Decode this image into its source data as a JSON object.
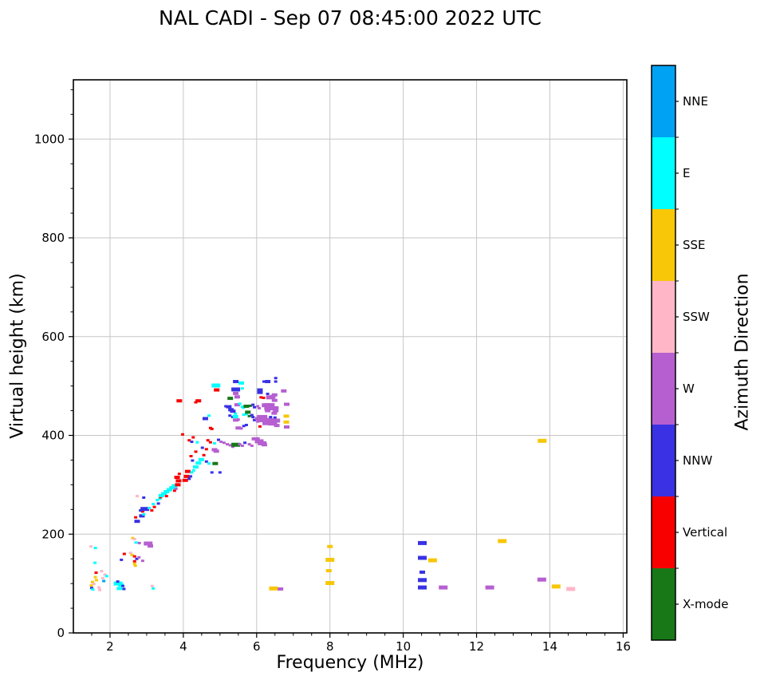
{
  "title": "NAL CADI - Sep 07 08:45:00 2022 UTC",
  "chart_data": {
    "type": "scatter",
    "title": "NAL CADI - Sep 07 08:45:00 2022 UTC",
    "xlabel": "Frequency (MHz)",
    "ylabel": "Virtual height (km)",
    "xlim": [
      1,
      16.1
    ],
    "ylim": [
      0,
      1120
    ],
    "grid": true,
    "x_ticks": {
      "major": [
        2,
        4,
        6,
        8,
        10,
        12,
        14,
        16
      ],
      "minor_step": 0.5
    },
    "y_ticks": {
      "major": [
        0,
        200,
        400,
        600,
        800,
        1000
      ],
      "minor_step": 50
    },
    "colorbar": {
      "label": "Azimuth Direction",
      "position": "right",
      "categories": [
        {
          "label": "NNE",
          "color": "#00A2F3"
        },
        {
          "label": "E",
          "color": "#00FFFF"
        },
        {
          "label": "SSE",
          "color": "#F7C708"
        },
        {
          "label": "SSW",
          "color": "#FFB6C7"
        },
        {
          "label": "W",
          "color": "#B65FD0"
        },
        {
          "label": "NNW",
          "color": "#3931E3"
        },
        {
          "label": "Vertical",
          "color": "#F80000"
        },
        {
          "label": "X-mode",
          "color": "#187818"
        }
      ]
    },
    "point_format": "[frequency_MHz, virtual_height_km, azimuth_category, mark_size]",
    "points": [
      [
        1.48,
        175,
        "SSW",
        "s"
      ],
      [
        1.6,
        172,
        "E",
        "s"
      ],
      [
        1.59,
        142,
        "E",
        "s"
      ],
      [
        1.77,
        125,
        "SSW",
        "s"
      ],
      [
        1.62,
        122,
        "Vertical",
        "s"
      ],
      [
        1.86,
        118,
        "SSW",
        "s"
      ],
      [
        1.91,
        115,
        "E",
        "s"
      ],
      [
        1.6,
        113,
        "SSE",
        "s"
      ],
      [
        1.8,
        111,
        "SSW",
        "s"
      ],
      [
        1.63,
        107,
        "SSE",
        "s"
      ],
      [
        1.83,
        105,
        "NNE",
        "s"
      ],
      [
        1.52,
        103,
        "SSE",
        "s"
      ],
      [
        1.56,
        99,
        "SSW",
        "s"
      ],
      [
        1.49,
        96,
        "SSE",
        "s"
      ],
      [
        1.5,
        91,
        "NNW",
        "s"
      ],
      [
        1.53,
        88,
        "E",
        "s"
      ],
      [
        1.7,
        92,
        "SSW",
        "s"
      ],
      [
        1.72,
        87,
        "SSW",
        "s"
      ],
      [
        2.22,
        100,
        "E",
        "l"
      ],
      [
        2.3,
        97,
        "E",
        "m"
      ],
      [
        2.35,
        95,
        "NNW",
        "s"
      ],
      [
        2.26,
        90,
        "E",
        "m"
      ],
      [
        2.38,
        89,
        "NNW",
        "s"
      ],
      [
        2.21,
        104,
        "NNW",
        "s"
      ],
      [
        3.15,
        95,
        "SSW",
        "s"
      ],
      [
        3.18,
        90,
        "E",
        "s"
      ],
      [
        2.62,
        192,
        "SSE",
        "s"
      ],
      [
        2.67,
        190,
        "SSW",
        "s"
      ],
      [
        2.71,
        183,
        "E",
        "s"
      ],
      [
        2.8,
        182,
        "W",
        "s"
      ],
      [
        3.04,
        181,
        "W",
        "l"
      ],
      [
        3.1,
        176,
        "W",
        "m"
      ],
      [
        2.67,
        145,
        "Vertical",
        "s"
      ],
      [
        2.69,
        136,
        "SSE",
        "s"
      ],
      [
        2.89,
        146,
        "W",
        "s"
      ],
      [
        2.39,
        160,
        "Vertical",
        "s"
      ],
      [
        2.56,
        162,
        "SSW",
        "s"
      ],
      [
        2.6,
        158,
        "SSE",
        "s"
      ],
      [
        2.67,
        155,
        "Vertical",
        "s"
      ],
      [
        2.73,
        150,
        "NNW",
        "s"
      ],
      [
        2.79,
        153,
        "W",
        "s"
      ],
      [
        2.31,
        148,
        "NNW",
        "s"
      ],
      [
        2.67,
        140,
        "SSE",
        "s"
      ],
      [
        2.74,
        226,
        "NNW",
        "m"
      ],
      [
        2.7,
        234,
        "Vertical",
        "s"
      ],
      [
        2.87,
        237,
        "NNW",
        "m"
      ],
      [
        2.92,
        240,
        "E",
        "s"
      ],
      [
        2.89,
        246,
        "Vertical",
        "s"
      ],
      [
        2.83,
        248,
        "NNW",
        "s"
      ],
      [
        2.95,
        251,
        "NNW",
        "l"
      ],
      [
        3.07,
        253,
        "E",
        "s"
      ],
      [
        3.14,
        248,
        "Vertical",
        "s"
      ],
      [
        3.21,
        255,
        "Vertical",
        "s"
      ],
      [
        3.18,
        261,
        "E",
        "s"
      ],
      [
        3.32,
        262,
        "NNW",
        "s"
      ],
      [
        3.29,
        269,
        "E",
        "s"
      ],
      [
        3.36,
        272,
        "E",
        "s"
      ],
      [
        2.92,
        274,
        "NNW",
        "s"
      ],
      [
        2.74,
        277,
        "SSW",
        "s"
      ],
      [
        3.38,
        275,
        "Vertical",
        "s"
      ],
      [
        3.4,
        278,
        "E",
        "m"
      ],
      [
        3.47,
        282,
        "E",
        "m"
      ],
      [
        3.54,
        277,
        "Vertical",
        "s"
      ],
      [
        3.54,
        286,
        "E",
        "m"
      ],
      [
        3.62,
        290,
        "E",
        "m"
      ],
      [
        3.69,
        294,
        "E",
        "m"
      ],
      [
        3.76,
        288,
        "Vertical",
        "s"
      ],
      [
        3.8,
        292,
        "W",
        "s"
      ],
      [
        3.76,
        298,
        "E",
        "m"
      ],
      [
        3.85,
        300,
        "Vertical",
        "m"
      ],
      [
        3.87,
        308,
        "Vertical",
        "m"
      ],
      [
        3.83,
        315,
        "Vertical",
        "m"
      ],
      [
        3.89,
        322,
        "Vertical",
        "s"
      ],
      [
        4.05,
        309,
        "Vertical",
        "m"
      ],
      [
        4.09,
        317,
        "Vertical",
        "m"
      ],
      [
        4.12,
        327,
        "Vertical",
        "m"
      ],
      [
        4.16,
        312,
        "NNW",
        "s"
      ],
      [
        4.2,
        317,
        "NNW",
        "s"
      ],
      [
        4.23,
        325,
        "E",
        "s"
      ],
      [
        4.28,
        329,
        "E",
        "s"
      ],
      [
        4.34,
        336,
        "E",
        "m"
      ],
      [
        4.41,
        344,
        "E",
        "m"
      ],
      [
        4.49,
        351,
        "E",
        "m"
      ],
      [
        4.25,
        349,
        "NNW",
        "s"
      ],
      [
        4.21,
        358,
        "Vertical",
        "s"
      ],
      [
        4.34,
        367,
        "Vertical",
        "s"
      ],
      [
        4.56,
        360,
        "Vertical",
        "s"
      ],
      [
        4.63,
        347,
        "NNW",
        "s"
      ],
      [
        4.7,
        343,
        "E",
        "s"
      ],
      [
        4.87,
        343,
        "X-mode",
        "m"
      ],
      [
        4.78,
        325,
        "NNW",
        "s"
      ],
      [
        5.0,
        325,
        "NNW",
        "s"
      ],
      [
        4.63,
        372,
        "Vertical",
        "s"
      ],
      [
        4.52,
        375,
        "NNW",
        "s"
      ],
      [
        4.85,
        371,
        "W",
        "m"
      ],
      [
        4.9,
        368,
        "W",
        "m"
      ],
      [
        3.98,
        402,
        "Vertical",
        "s"
      ],
      [
        4.16,
        390,
        "Vertical",
        "s"
      ],
      [
        4.23,
        387,
        "NNW",
        "s"
      ],
      [
        4.27,
        396,
        "Vertical",
        "s"
      ],
      [
        4.38,
        386,
        "E",
        "s"
      ],
      [
        4.67,
        390,
        "Vertical",
        "s"
      ],
      [
        4.74,
        386,
        "Vertical",
        "s"
      ],
      [
        4.96,
        391,
        "NNW",
        "s"
      ],
      [
        5.03,
        387,
        "W",
        "s"
      ],
      [
        5.11,
        385,
        "W",
        "s"
      ],
      [
        4.85,
        384,
        "E",
        "s"
      ],
      [
        5.2,
        382,
        "W",
        "s"
      ],
      [
        5.28,
        380,
        "W",
        "s"
      ],
      [
        5.35,
        377,
        "W",
        "s"
      ],
      [
        5.43,
        381,
        "X-mode",
        "l"
      ],
      [
        5.54,
        382,
        "W",
        "s"
      ],
      [
        5.61,
        379,
        "W",
        "s"
      ],
      [
        5.68,
        385,
        "NNW",
        "s"
      ],
      [
        5.8,
        382,
        "W",
        "s"
      ],
      [
        5.87,
        379,
        "W",
        "s"
      ],
      [
        5.94,
        393,
        "W",
        "m"
      ],
      [
        6.01,
        393,
        "W",
        "m"
      ],
      [
        6.07,
        388,
        "W",
        "l"
      ],
      [
        6.15,
        384,
        "W",
        "l"
      ],
      [
        6.21,
        381,
        "W",
        "m"
      ],
      [
        6.09,
        418,
        "Vertical",
        "s"
      ],
      [
        5.5,
        415,
        "W",
        "m"
      ],
      [
        5.58,
        414,
        "W",
        "s"
      ],
      [
        5.65,
        419,
        "NNW",
        "s"
      ],
      [
        5.72,
        421,
        "NNW",
        "s"
      ],
      [
        5.43,
        431,
        "W",
        "m"
      ],
      [
        5.5,
        432,
        "W",
        "s"
      ],
      [
        5.65,
        442,
        "E",
        "s"
      ],
      [
        5.72,
        443,
        "E",
        "s"
      ],
      [
        5.76,
        447,
        "X-mode",
        "m"
      ],
      [
        5.8,
        439,
        "X-mode",
        "s"
      ],
      [
        5.87,
        441,
        "NNW",
        "s"
      ],
      [
        5.94,
        431,
        "NNW",
        "s"
      ],
      [
        5.9,
        437,
        "NNW",
        "s"
      ],
      [
        6.03,
        434,
        "W",
        "m"
      ],
      [
        6.03,
        428,
        "W",
        "s"
      ],
      [
        6.15,
        434,
        "W",
        "xl"
      ],
      [
        6.3,
        428,
        "W",
        "xl"
      ],
      [
        6.44,
        424,
        "W",
        "l"
      ],
      [
        6.38,
        437,
        "NNW",
        "s"
      ],
      [
        6.5,
        436,
        "NNW",
        "s"
      ],
      [
        6.52,
        430,
        "W",
        "l"
      ],
      [
        6.55,
        420,
        "W",
        "m"
      ],
      [
        5.27,
        440,
        "NNW",
        "s"
      ],
      [
        5.35,
        437,
        "NNW",
        "s"
      ],
      [
        5.42,
        438,
        "E",
        "m"
      ],
      [
        5.42,
        444,
        "E",
        "s"
      ],
      [
        4.7,
        440,
        "E",
        "s"
      ],
      [
        4.6,
        434,
        "NNW",
        "m"
      ],
      [
        4.74,
        415,
        "Vertical",
        "s"
      ],
      [
        4.78,
        413,
        "Vertical",
        "s"
      ],
      [
        6.81,
        439,
        "SSE",
        "m"
      ],
      [
        6.81,
        427,
        "SSE",
        "m"
      ],
      [
        6.82,
        417,
        "W",
        "m"
      ],
      [
        6.82,
        463,
        "W",
        "m"
      ],
      [
        6.48,
        445,
        "W",
        "m"
      ],
      [
        6.52,
        450,
        "W",
        "m"
      ],
      [
        5.16,
        459,
        "NNW",
        "s"
      ],
      [
        5.24,
        458,
        "NNW",
        "m"
      ],
      [
        5.3,
        452,
        "NNW",
        "m"
      ],
      [
        5.35,
        449,
        "NNW",
        "m"
      ],
      [
        5.47,
        462,
        "W",
        "m"
      ],
      [
        5.54,
        464,
        "E",
        "s"
      ],
      [
        5.61,
        458,
        "E",
        "s"
      ],
      [
        5.64,
        456,
        "E",
        "s"
      ],
      [
        5.72,
        459,
        "X-mode",
        "m"
      ],
      [
        5.83,
        460,
        "X-mode",
        "s"
      ],
      [
        5.9,
        462,
        "NNW",
        "s"
      ],
      [
        5.94,
        457,
        "NNW",
        "s"
      ],
      [
        6.03,
        459,
        "W",
        "s"
      ],
      [
        6.07,
        455,
        "W",
        "s"
      ],
      [
        6.26,
        461,
        "W",
        "l"
      ],
      [
        6.35,
        458,
        "W",
        "xl"
      ],
      [
        6.48,
        455,
        "W",
        "l"
      ],
      [
        6.3,
        450,
        "W",
        "m"
      ],
      [
        3.89,
        470,
        "Vertical",
        "m"
      ],
      [
        4.41,
        470,
        "Vertical",
        "m"
      ],
      [
        4.34,
        467,
        "Vertical",
        "s"
      ],
      [
        4.89,
        501,
        "E",
        "l"
      ],
      [
        4.91,
        492,
        "Vertical",
        "m"
      ],
      [
        5.28,
        475,
        "X-mode",
        "m"
      ],
      [
        5.43,
        493,
        "NNW",
        "l"
      ],
      [
        5.43,
        485,
        "W",
        "m"
      ],
      [
        5.47,
        478,
        "W",
        "m"
      ],
      [
        5.61,
        495,
        "E",
        "s"
      ],
      [
        5.58,
        506,
        "E",
        "m"
      ],
      [
        5.43,
        509,
        "NNW",
        "m"
      ],
      [
        5.47,
        477,
        "W",
        "s"
      ],
      [
        6.09,
        492,
        "NNW",
        "m"
      ],
      [
        6.09,
        487,
        "NNW",
        "m"
      ],
      [
        6.12,
        477,
        "Vertical",
        "s"
      ],
      [
        6.19,
        476,
        "Vertical",
        "s"
      ],
      [
        6.3,
        484,
        "NNW",
        "s"
      ],
      [
        6.3,
        509,
        "NNW",
        "m"
      ],
      [
        6.2,
        509,
        "NNW",
        "s"
      ],
      [
        6.38,
        477,
        "W",
        "l"
      ],
      [
        6.44,
        479,
        "W",
        "m"
      ],
      [
        6.52,
        516,
        "NNW",
        "s"
      ],
      [
        6.52,
        509,
        "NNW",
        "s"
      ],
      [
        6.74,
        490,
        "W",
        "m"
      ],
      [
        6.49,
        471,
        "W",
        "m"
      ],
      [
        6.49,
        482,
        "W",
        "m"
      ],
      [
        8.0,
        175,
        "SSE",
        "m"
      ],
      [
        8.0,
        148,
        "SSE",
        "l"
      ],
      [
        7.97,
        126,
        "SSE",
        "m"
      ],
      [
        8.0,
        101,
        "SSE",
        "l"
      ],
      [
        6.46,
        90,
        "SSE",
        "l"
      ],
      [
        6.65,
        89,
        "W",
        "m"
      ],
      [
        10.52,
        182,
        "NNW",
        "l"
      ],
      [
        10.52,
        152,
        "NNW",
        "l"
      ],
      [
        10.8,
        147,
        "SSE",
        "l"
      ],
      [
        10.52,
        123,
        "NNW",
        "m"
      ],
      [
        10.52,
        107,
        "NNW",
        "l"
      ],
      [
        10.52,
        92,
        "NNW",
        "l"
      ],
      [
        11.09,
        92,
        "W",
        "l"
      ],
      [
        12.36,
        92,
        "W",
        "l"
      ],
      [
        12.7,
        186,
        "SSE",
        "l"
      ],
      [
        13.79,
        389,
        "SSE",
        "l"
      ],
      [
        13.78,
        108,
        "W",
        "l"
      ],
      [
        14.17,
        94,
        "SSE",
        "l"
      ],
      [
        14.57,
        89,
        "SSW",
        "l"
      ]
    ]
  }
}
